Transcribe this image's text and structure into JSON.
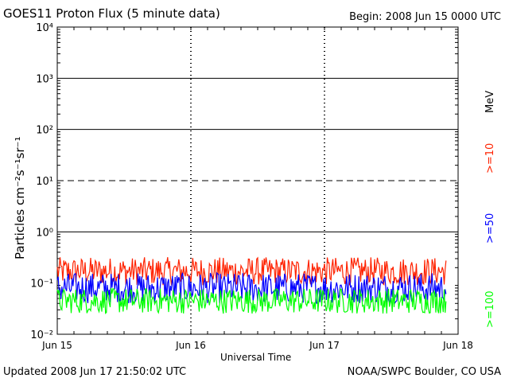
{
  "title": "GOES11 Proton Flux (5 minute data)",
  "begin": "Begin: 2008 Jun 15 0000 UTC",
  "updated": "Updated 2008 Jun 17 21:50:02 UTC",
  "credit": "NOAA/SWPC Boulder, CO USA",
  "chart_data": {
    "type": "line",
    "title": "GOES11 Proton Flux (5 minute data)",
    "xlabel": "Universal Time",
    "ylabel": "Particles cm⁻²s⁻¹sr⁻¹",
    "y_scale": "log",
    "ylim": [
      0.01,
      10000
    ],
    "y_ticks": [
      {
        "value": 0.01,
        "label": "10⁻²"
      },
      {
        "value": 0.1,
        "label": "10⁻¹"
      },
      {
        "value": 1,
        "label": "10⁰"
      },
      {
        "value": 10,
        "label": "10¹"
      },
      {
        "value": 100,
        "label": "10²"
      },
      {
        "value": 1000,
        "label": "10³"
      },
      {
        "value": 10000,
        "label": "10⁴"
      }
    ],
    "xlim": [
      "2008-06-15",
      "2008-06-18"
    ],
    "x_ticks": [
      "Jun 15",
      "Jun 16",
      "Jun 17",
      "Jun 18"
    ],
    "data_end": "2008-06-17T21:50",
    "legend_unit": "MeV",
    "series": [
      {
        "name": ">=10",
        "color": "#ff2200",
        "typical": 0.17,
        "x": [
          "06-15 00h",
          "06-15 06h",
          "06-15 12h",
          "06-15 18h",
          "06-16 00h",
          "06-16 06h",
          "06-16 12h",
          "06-16 18h",
          "06-17 00h",
          "06-17 06h",
          "06-17 12h",
          "06-17 18h",
          "06-17 21h"
        ],
        "values": [
          0.2,
          0.18,
          0.17,
          0.16,
          0.17,
          0.18,
          0.16,
          0.17,
          0.17,
          0.16,
          0.17,
          0.17,
          0.16
        ]
      },
      {
        "name": ">=50",
        "color": "#0000ff",
        "typical": 0.08,
        "x": [
          "06-15 00h",
          "06-15 06h",
          "06-15 12h",
          "06-15 18h",
          "06-16 00h",
          "06-16 06h",
          "06-16 12h",
          "06-16 18h",
          "06-17 00h",
          "06-17 06h",
          "06-17 12h",
          "06-17 18h",
          "06-17 21h"
        ],
        "values": [
          0.09,
          0.08,
          0.08,
          0.08,
          0.08,
          0.08,
          0.08,
          0.08,
          0.08,
          0.08,
          0.08,
          0.08,
          0.08
        ]
      },
      {
        "name": ">=100",
        "color": "#00ff00",
        "typical": 0.045,
        "x": [
          "06-15 00h",
          "06-15 06h",
          "06-15 12h",
          "06-15 18h",
          "06-16 00h",
          "06-16 06h",
          "06-16 12h",
          "06-16 18h",
          "06-17 00h",
          "06-17 06h",
          "06-17 12h",
          "06-17 18h",
          "06-17 21h"
        ],
        "values": [
          0.05,
          0.045,
          0.045,
          0.045,
          0.045,
          0.045,
          0.045,
          0.045,
          0.045,
          0.045,
          0.045,
          0.045,
          0.045
        ]
      }
    ],
    "grid": true,
    "threshold_lines": [
      1,
      100,
      1000
    ],
    "dashed_lines": [
      10
    ],
    "legend_placement": "right-vertical"
  }
}
